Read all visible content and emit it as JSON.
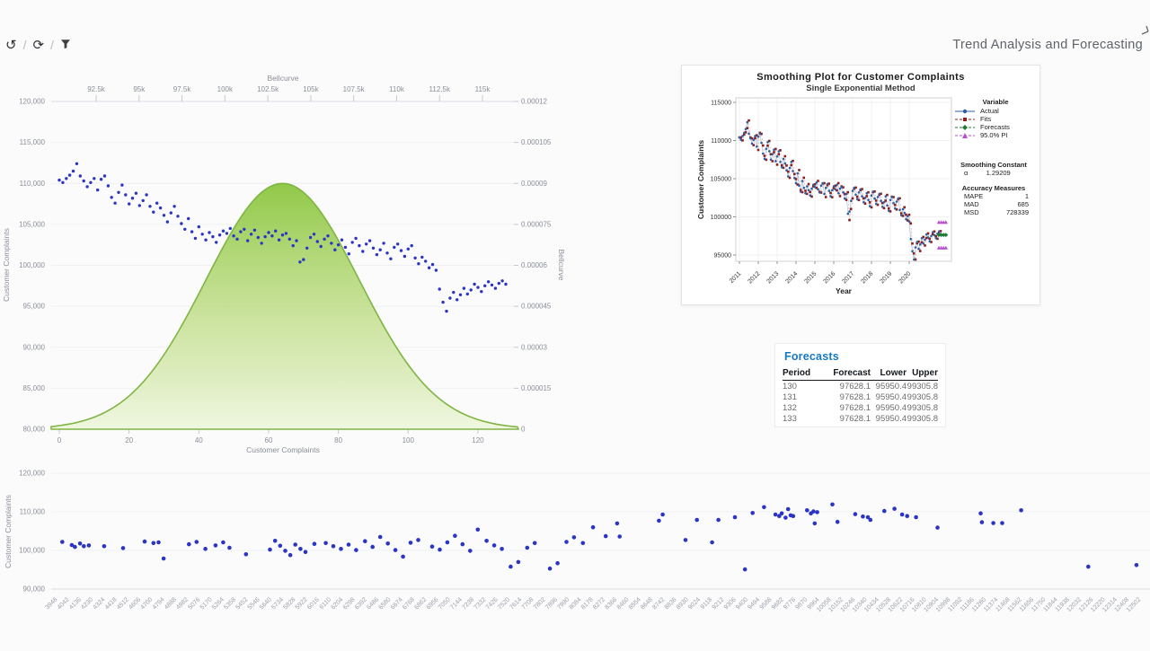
{
  "header": {
    "title": "Trend Analysis and Forecasting",
    "toolbar": {
      "undo_icon": "↺",
      "refresh_icon": "⟳",
      "separator": "/"
    }
  },
  "colors": {
    "scatter_dot": "#2a35c6",
    "bell_stroke": "#7fb542",
    "bell_fill_top": "#8cc63f",
    "bell_fill_mid": "#c3df8e",
    "bell_fill_bottom": "#eef6dd",
    "grid": "#eef0f3",
    "axis_line": "#d9dce2",
    "tick": "#c6cad1",
    "tick_label": "#8a8f98",
    "actual": "#2e5fa3",
    "actual_line": "#a9c0dd",
    "fits": "#8f1d1d",
    "fits_line": "#d8a7a7",
    "forecast": "#1c7c33",
    "pi": "#b84fd0",
    "table_title": "#1778c2"
  },
  "chart_data": [
    {
      "id": "complaints-scatter-bellcurve",
      "type": "scatter",
      "x_axis_bottom": {
        "label": "Customer Complaints",
        "ticks": [
          0,
          20,
          40,
          60,
          80,
          100,
          120
        ],
        "range": [
          0,
          131
        ]
      },
      "x_axis_top": {
        "label": "Bellcurve",
        "ticks": [
          "92.5k",
          "95k",
          "97.5k",
          "100k",
          "102.5k",
          "105k",
          "107.5k",
          "110k",
          "112.5k",
          "115k"
        ]
      },
      "y_axis_left": {
        "label": "Customer Complaints",
        "ticks": [
          "120,000",
          "115,000",
          "110,000",
          "105,000",
          "100,000",
          "95,000",
          "90,000",
          "85,000",
          "80,000"
        ],
        "range": [
          80000,
          120000
        ]
      },
      "y_axis_right": {
        "label": "Bellcurve",
        "ticks": [
          "0.00012",
          "0.000105",
          "0.00009",
          "0.000075",
          "0.00006",
          "0.000045",
          "0.00003",
          "0.000015",
          "0"
        ],
        "range": [
          0,
          0.00012
        ]
      },
      "bell": {
        "center": 64,
        "sigma": 22,
        "peak": 9e-05
      },
      "points_y": [
        110400,
        110100,
        110600,
        111000,
        111500,
        112400,
        110900,
        110300,
        109600,
        110100,
        110600,
        109200,
        110500,
        110900,
        109700,
        108300,
        107600,
        108900,
        109800,
        108600,
        107500,
        108200,
        108800,
        107300,
        107900,
        108600,
        107200,
        106500,
        107600,
        107000,
        106100,
        105300,
        106400,
        107200,
        106000,
        105100,
        104400,
        105700,
        104100,
        103300,
        104700,
        103800,
        103100,
        104000,
        103500,
        102800,
        103700,
        104200,
        103900,
        104500,
        103600,
        103200,
        104100,
        104400,
        103000,
        103800,
        104300,
        103400,
        102700,
        103500,
        104000,
        103600,
        104200,
        103100,
        103700,
        103900,
        103200,
        102400,
        103000,
        100400,
        100700,
        102100,
        103400,
        103800,
        102900,
        102300,
        103200,
        103600,
        102700,
        101900,
        102500,
        103100,
        102200,
        101400,
        102800,
        103300,
        102400,
        101700,
        102600,
        103000,
        102100,
        101300,
        101900,
        102700,
        101500,
        100800,
        102200,
        102600,
        101800,
        101100,
        102000,
        102400,
        100900,
        100200,
        101000,
        100500,
        99700,
        100100,
        99400,
        97100,
        95500,
        94400,
        96000,
        96700,
        95800,
        96400,
        97200,
        96500,
        97000,
        97700,
        97300,
        96800,
        97500,
        98000,
        97600,
        97200,
        97800,
        98100,
        97700
      ]
    },
    {
      "id": "smoothing-plot",
      "type": "line",
      "title": "Smoothing Plot for Customer Complaints",
      "subtitle": "Single Exponential Method",
      "xlabel": "Year",
      "ylabel": "Customer Complaints",
      "x_ticks": [
        "2011",
        "2012",
        "2013",
        "2014",
        "2015",
        "2016",
        "2017",
        "2018",
        "2019",
        "2020"
      ],
      "y_ticks": [
        "115000",
        "110000",
        "105000",
        "100000",
        "95000"
      ],
      "actual_from_chart": 0,
      "alpha": 1.29209,
      "forecast": {
        "periods": [
          130,
          131,
          132,
          133
        ],
        "value": 97628.1,
        "pi_lower": 95950.4,
        "pi_upper": 99305.8
      },
      "legend": {
        "header": "Variable",
        "items": [
          {
            "label": "Actual",
            "marker": "circle",
            "color": "#2e5fa3"
          },
          {
            "label": "Fits",
            "marker": "square",
            "color": "#8f1d1d"
          },
          {
            "label": "Forecasts",
            "marker": "diamond",
            "color": "#1c7c33"
          },
          {
            "label": "95.0% PI",
            "marker": "triangle",
            "color": "#b84fd0"
          }
        ]
      },
      "stats": {
        "smoothing_constant_label": "Smoothing Constant",
        "alpha_symbol": "α",
        "alpha_value": "1.29209",
        "accuracy_label": "Accuracy Measures",
        "rows": [
          [
            "MAPE",
            "1"
          ],
          [
            "MAD",
            "685"
          ],
          [
            "MSD",
            "728339"
          ]
        ]
      }
    },
    {
      "id": "forecast-table",
      "type": "table",
      "title": "Forecasts",
      "columns": [
        "Period",
        "Forecast",
        "Lower",
        "Upper"
      ],
      "rows": [
        [
          "130",
          "97628.1",
          "95950.4",
          "99305.8"
        ],
        [
          "131",
          "97628.1",
          "95950.4",
          "99305.8"
        ],
        [
          "132",
          "97628.1",
          "95950.4",
          "99305.8"
        ],
        [
          "133",
          "97628.1",
          "95950.4",
          "99305.8"
        ]
      ]
    },
    {
      "id": "bottom-scatter",
      "type": "scatter",
      "ylabel": "Customer Complaints",
      "y_ticks": [
        "120,000",
        "110,000",
        "100,000",
        "90,000"
      ],
      "y_range": [
        90000,
        120000
      ],
      "x_range": [
        3948,
        12502
      ],
      "x_ticks": [
        3948,
        4042,
        4136,
        4230,
        4324,
        4418,
        4512,
        4606,
        4700,
        4794,
        4888,
        4982,
        5076,
        5170,
        5264,
        5358,
        5452,
        5546,
        5640,
        5734,
        5828,
        5922,
        6016,
        6110,
        6204,
        6298,
        6392,
        6486,
        6580,
        6674,
        6768,
        6862,
        6956,
        7050,
        7144,
        7238,
        7332,
        7426,
        7520,
        7614,
        7708,
        7802,
        7896,
        7990,
        8084,
        8178,
        8272,
        8366,
        8460,
        8554,
        8648,
        8742,
        8836,
        8930,
        9024,
        9118,
        9212,
        9306,
        9400,
        9494,
        9588,
        9682,
        9776,
        9870,
        9964,
        10058,
        10152,
        10246,
        10340,
        10434,
        10528,
        10622,
        10716,
        10810,
        10904,
        10998,
        11092,
        11186,
        11280,
        11374,
        11468,
        11562,
        11656,
        11750,
        11844,
        11938,
        12032,
        12126,
        12220,
        12314,
        12408,
        12502
      ],
      "points": [
        [
          4000,
          102200
        ],
        [
          4075,
          101400
        ],
        [
          4100,
          100900
        ],
        [
          4140,
          101800
        ],
        [
          4170,
          101100
        ],
        [
          4210,
          101300
        ],
        [
          4330,
          101100
        ],
        [
          4480,
          100600
        ],
        [
          4650,
          102300
        ],
        [
          4720,
          101900
        ],
        [
          4760,
          102100
        ],
        [
          4800,
          97900
        ],
        [
          5000,
          101600
        ],
        [
          5060,
          102200
        ],
        [
          5130,
          100400
        ],
        [
          5210,
          101300
        ],
        [
          5270,
          102100
        ],
        [
          5320,
          100700
        ],
        [
          5450,
          99000
        ],
        [
          5640,
          100200
        ],
        [
          5680,
          102500
        ],
        [
          5720,
          101200
        ],
        [
          5760,
          99900
        ],
        [
          5800,
          98800
        ],
        [
          5840,
          101500
        ],
        [
          5880,
          100400
        ],
        [
          5920,
          99600
        ],
        [
          5990,
          101700
        ],
        [
          6080,
          101900
        ],
        [
          6140,
          101100
        ],
        [
          6200,
          100400
        ],
        [
          6260,
          101500
        ],
        [
          6320,
          100100
        ],
        [
          6390,
          102400
        ],
        [
          6450,
          100900
        ],
        [
          6510,
          103500
        ],
        [
          6570,
          101800
        ],
        [
          6630,
          100100
        ],
        [
          6690,
          98400
        ],
        [
          6750,
          102000
        ],
        [
          6810,
          102700
        ],
        [
          6920,
          101000
        ],
        [
          6980,
          100200
        ],
        [
          7040,
          102100
        ],
        [
          7100,
          103800
        ],
        [
          7160,
          101600
        ],
        [
          7220,
          99900
        ],
        [
          7280,
          105400
        ],
        [
          7350,
          102500
        ],
        [
          7410,
          101300
        ],
        [
          7470,
          100400
        ],
        [
          7540,
          95800
        ],
        [
          7600,
          97000
        ],
        [
          7670,
          100700
        ],
        [
          7730,
          101900
        ],
        [
          7850,
          95300
        ],
        [
          7910,
          96700
        ],
        [
          7980,
          102200
        ],
        [
          8040,
          103400
        ],
        [
          8110,
          101900
        ],
        [
          8190,
          106000
        ],
        [
          8290,
          103700
        ],
        [
          8380,
          107000
        ],
        [
          8400,
          103600
        ],
        [
          8710,
          107700
        ],
        [
          8740,
          109300
        ],
        [
          8920,
          102700
        ],
        [
          9010,
          107900
        ],
        [
          9130,
          102100
        ],
        [
          9180,
          107900
        ],
        [
          9310,
          108600
        ],
        [
          9390,
          95100
        ],
        [
          9450,
          109700
        ],
        [
          9540,
          111200
        ],
        [
          9630,
          109300
        ],
        [
          9660,
          108900
        ],
        [
          9680,
          109600
        ],
        [
          9710,
          108500
        ],
        [
          9730,
          110700
        ],
        [
          9750,
          109100
        ],
        [
          9770,
          108900
        ],
        [
          9880,
          110400
        ],
        [
          9910,
          109600
        ],
        [
          9930,
          110100
        ],
        [
          9940,
          107000
        ],
        [
          9960,
          109900
        ],
        [
          10080,
          111900
        ],
        [
          10120,
          107400
        ],
        [
          10260,
          109400
        ],
        [
          10320,
          108800
        ],
        [
          10360,
          108600
        ],
        [
          10380,
          107900
        ],
        [
          10490,
          110200
        ],
        [
          10570,
          110800
        ],
        [
          10630,
          109300
        ],
        [
          10670,
          108900
        ],
        [
          10740,
          108600
        ],
        [
          10910,
          105900
        ],
        [
          11250,
          109600
        ],
        [
          11260,
          107300
        ],
        [
          11350,
          107100
        ],
        [
          11420,
          107100
        ],
        [
          11570,
          110400
        ],
        [
          12100,
          95800
        ],
        [
          12480,
          96200
        ]
      ]
    }
  ]
}
